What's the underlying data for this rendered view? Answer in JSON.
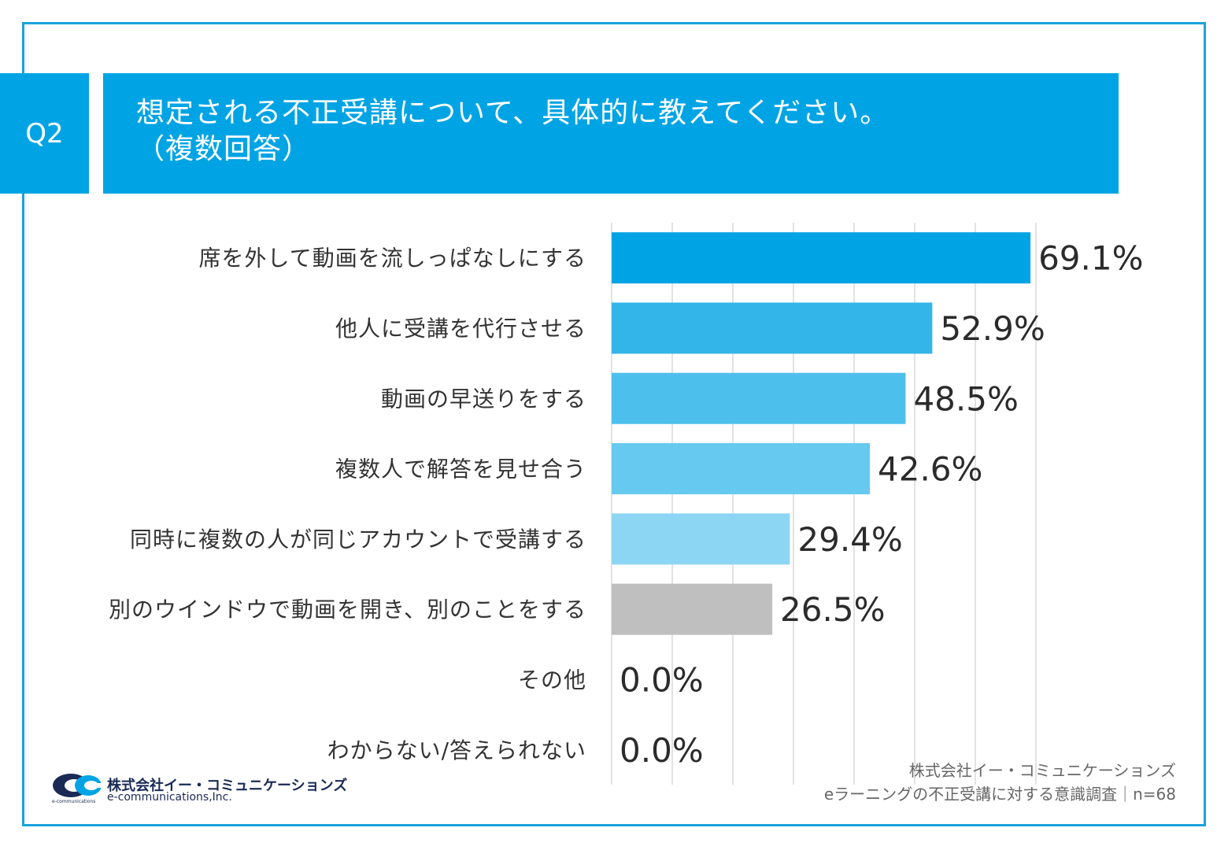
{
  "question": {
    "badge": "Q2",
    "title_line1": "想定される不正受講について、具体的に教えてください。",
    "title_line2": "（複数回答）"
  },
  "chart_data": {
    "type": "bar",
    "orientation": "horizontal",
    "title": "想定される不正受講について、具体的に教えてください。（複数回答）",
    "categories": [
      "席を外して動画を流しっぱなしにする",
      "他人に受講を代行させる",
      "動画の早送りをする",
      "複数人で解答を見せ合う",
      "同時に複数の人が同じアカウントで受講する",
      "別のウインドウで動画を開き、別のことをする",
      "その他",
      "わからない/答えられない"
    ],
    "values": [
      69.1,
      52.9,
      48.5,
      42.6,
      29.4,
      26.5,
      0.0,
      0.0
    ],
    "value_labels": [
      "69.1%",
      "52.9%",
      "48.5%",
      "42.6%",
      "29.4%",
      "26.5%",
      "0.0%",
      "0.0%"
    ],
    "bar_colors": [
      "#00a4e4",
      "#33b5ea",
      "#4dbfec",
      "#66c9f0",
      "#8dd6f3",
      "#bfbfbf",
      "#bfbfbf",
      "#bfbfbf"
    ],
    "xlim": [
      0,
      70
    ],
    "grid": true,
    "xlabel": "",
    "ylabel": "",
    "unit": "%"
  },
  "logo": {
    "company_jp": "株式会社イー・コミュニケーションズ",
    "company_en": "e-communications,Inc.",
    "mark_text": "e-communications"
  },
  "source": {
    "line1": "株式会社イー・コミュニケーションズ",
    "line2": "eラーニングの不正受講に対する意識調査｜n=68"
  },
  "colors": {
    "accent": "#00a4e4",
    "frame": "#1aa3dc",
    "grid": "#d9d9d9"
  }
}
